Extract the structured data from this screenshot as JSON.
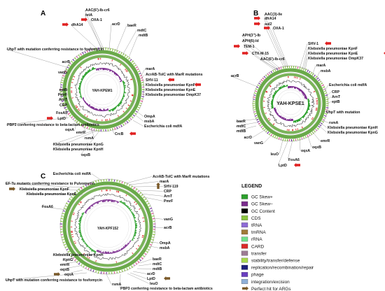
{
  "panels": [
    {
      "id": "A",
      "center_label": "YAH-KPEM1",
      "genes": [
        {
          "text": "AAC(6')-Ib-cr6",
          "arrow": false
        },
        {
          "text": "tetA",
          "arrow": false
        },
        {
          "text": "OXA-1",
          "arrow": true
        },
        {
          "text": "dfrA14",
          "arrow": true
        },
        {
          "text": "acrD",
          "arrow": false
        },
        {
          "text": "baeR",
          "arrow": false
        },
        {
          "text": "mdtC",
          "arrow": false
        },
        {
          "text": "mdtB",
          "arrow": false
        },
        {
          "text": "UhpT with mutation conferring resistance to fosfomycin",
          "arrow": false
        },
        {
          "text": "acrB",
          "arrow": false
        },
        {
          "text": "vanG",
          "arrow": false
        },
        {
          "text": "eptB",
          "arrow": false
        },
        {
          "text": "PmrF",
          "arrow": false
        },
        {
          "text": "ArnT",
          "arrow": false
        },
        {
          "text": "CRP",
          "arrow": false
        },
        {
          "text": "FosA5",
          "arrow": false
        },
        {
          "text": "LptD",
          "arrow": true
        },
        {
          "text": "PBP3 conferring resistance to beta-lactam antibiotics",
          "arrow": false
        },
        {
          "text": "oqxA",
          "arrow": false
        },
        {
          "text": "emrR",
          "arrow": false
        },
        {
          "text": "rsmA",
          "arrow": false
        },
        {
          "text": "Klebsiella pneumoniae KpnG",
          "arrow": false
        },
        {
          "text": "Klebsiella pneumoniae KpnH",
          "arrow": false
        },
        {
          "text": "oqxB",
          "arrow": false
        },
        {
          "text": "CrcB",
          "arrow": true
        },
        {
          "text": "OmpA",
          "arrow": false
        },
        {
          "text": "msbA",
          "arrow": false
        },
        {
          "text": "Escherichia coli mdfA",
          "arrow": false
        },
        {
          "text": "AcrAB-TolC with MarR mutations",
          "arrow": false
        },
        {
          "text": "marA",
          "arrow": false
        },
        {
          "text": "SHV-11",
          "arrow": true
        },
        {
          "text": "Klebsiella pneumoniae KpnF",
          "arrow": true
        },
        {
          "text": "Klebsiella pneumoniae KpnE",
          "arrow": false
        },
        {
          "text": "Klebsiella pneumoniae OmpK37",
          "arrow": false
        }
      ]
    },
    {
      "id": "B",
      "center_label": "YAH-KPSE1",
      "genes": [
        {
          "text": "AAC(3)-IIe",
          "arrow": false
        },
        {
          "text": "dfrA14",
          "arrow": true
        },
        {
          "text": "sul2",
          "arrow": true
        },
        {
          "text": "OXA-1",
          "arrow": true
        },
        {
          "text": "APH(3'')-Ib",
          "arrow": false
        },
        {
          "text": "APH(6)-Id",
          "arrow": false
        },
        {
          "text": "TEM-1",
          "arrow": true
        },
        {
          "text": "CTX-M-15",
          "arrow": true
        },
        {
          "text": "AAC(6')-Ib-cr6",
          "arrow": false
        },
        {
          "text": "SHV-1",
          "arrow": true
        },
        {
          "text": "Klebsiella pneumoniae KpnF",
          "arrow": true
        },
        {
          "text": "Klebsiella pneumoniae KpnE",
          "arrow": true
        },
        {
          "text": "Klebsiella pneumoniae OmpK37",
          "arrow": false
        },
        {
          "text": "marA",
          "arrow": false
        },
        {
          "text": "msbA",
          "arrow": false
        },
        {
          "text": "Escherichia coli mdfA",
          "arrow": false
        },
        {
          "text": "CRP",
          "arrow": false
        },
        {
          "text": "ArnT",
          "arrow": false
        },
        {
          "text": "eptB",
          "arrow": false
        },
        {
          "text": "UhpT with mutation",
          "arrow": false
        },
        {
          "text": "rsmA",
          "arrow": false
        },
        {
          "text": "Klebsiella pneumoniae KpnH",
          "arrow": false
        },
        {
          "text": "Klebsiella pneumoniae KpnG",
          "arrow": false
        },
        {
          "text": "emrR",
          "arrow": false
        },
        {
          "text": "oqxB",
          "arrow": false
        },
        {
          "text": "oqxA",
          "arrow": false
        },
        {
          "text": "FosA6",
          "arrow": false
        },
        {
          "text": "LptD",
          "arrow": true
        },
        {
          "text": "leuO",
          "arrow": false
        },
        {
          "text": "vanG",
          "arrow": false
        },
        {
          "text": "acrD",
          "arrow": false
        },
        {
          "text": "baeR",
          "arrow": false
        },
        {
          "text": "mdtC",
          "arrow": false
        },
        {
          "text": "mdtB",
          "arrow": false
        },
        {
          "text": "acrB",
          "arrow": false
        }
      ]
    },
    {
      "id": "C",
      "center_label": "YAH-KPF152",
      "genes": [
        {
          "text": "Escherichia coli mdfA",
          "arrow": false
        },
        {
          "text": "AcrAB-TolC with MarR mutations",
          "arrow": false
        },
        {
          "text": "marA",
          "arrow": false
        },
        {
          "text": "SHV-119",
          "arrow": true
        },
        {
          "text": "CRP",
          "arrow": false
        },
        {
          "text": "ArnT",
          "arrow": false
        },
        {
          "text": "PmrF",
          "arrow": false
        },
        {
          "text": "EF-Tu mutants conferring resistance to Pulvomycin",
          "arrow": false
        },
        {
          "text": "Klebsiella pneumoniae KpnF",
          "arrow": true
        },
        {
          "text": "Klebsiella pneumoniae KpnE",
          "arrow": false
        },
        {
          "text": "FosA6",
          "arrow": false
        },
        {
          "text": "vanG",
          "arrow": false
        },
        {
          "text": "acrB",
          "arrow": false
        },
        {
          "text": "OmpA",
          "arrow": false
        },
        {
          "text": "msbA",
          "arrow": false
        },
        {
          "text": "Klebsiella pneumoniae KpnH",
          "arrow": false
        },
        {
          "text": "KpnG",
          "arrow": false
        },
        {
          "text": "emrR",
          "arrow": false
        },
        {
          "text": "oqxB",
          "arrow": false
        },
        {
          "text": "oqxA",
          "arrow": true
        },
        {
          "text": "UhpT with mutation conferring resistance to fosfomycin",
          "arrow": false
        },
        {
          "text": "rsmA",
          "arrow": false
        },
        {
          "text": "baeR",
          "arrow": false
        },
        {
          "text": "mdtC",
          "arrow": false
        },
        {
          "text": "mdtB",
          "arrow": false
        },
        {
          "text": "acrD",
          "arrow": false
        },
        {
          "text": "LptD",
          "arrow": true
        },
        {
          "text": "leuO",
          "arrow": false
        },
        {
          "text": "PBP3 conferring resistance to beta-lactam antibiotics",
          "arrow": false
        }
      ]
    }
  ],
  "legend": {
    "title": "LEGEND",
    "items": [
      {
        "label": "GC Skew+",
        "color": "#2ca02c"
      },
      {
        "label": "GC Skew–",
        "color": "#7b2c8e"
      },
      {
        "label": "GC Content",
        "color": "#000000"
      },
      {
        "label": "CDS",
        "color": "#8ac53f"
      },
      {
        "label": "tRNA",
        "color": "#8e6bd6"
      },
      {
        "label": "tmRNA",
        "color": "#a07a38"
      },
      {
        "label": "rRNA",
        "color": "#6fe08a"
      },
      {
        "label": "CARD",
        "color": "#d92a2a"
      },
      {
        "label": "transfer",
        "color": "#9c7b93"
      },
      {
        "label": "stability/transfer/defense",
        "color": "#a8d84a"
      },
      {
        "label": "replication/recombination/repair",
        "color": "#1f1f7a"
      },
      {
        "label": "phage",
        "color": "#6a3fc0"
      },
      {
        "label": "integration/excision",
        "color": "#8fb0d8"
      },
      {
        "label": "Perfect hit for ARGs",
        "color": "#7b5a2a",
        "arrow": true
      }
    ]
  },
  "colors": {
    "cds_ring": "#6aa94a",
    "gc_skew_plus": "#2ca02c",
    "gc_skew_minus": "#7b2c8e",
    "card": "#d92a2a",
    "arrow_red": "#e02020",
    "arrow_brown": "#7b5a2a",
    "pink_tick": "#e04a8a",
    "purple_tick": "#7030a0"
  }
}
